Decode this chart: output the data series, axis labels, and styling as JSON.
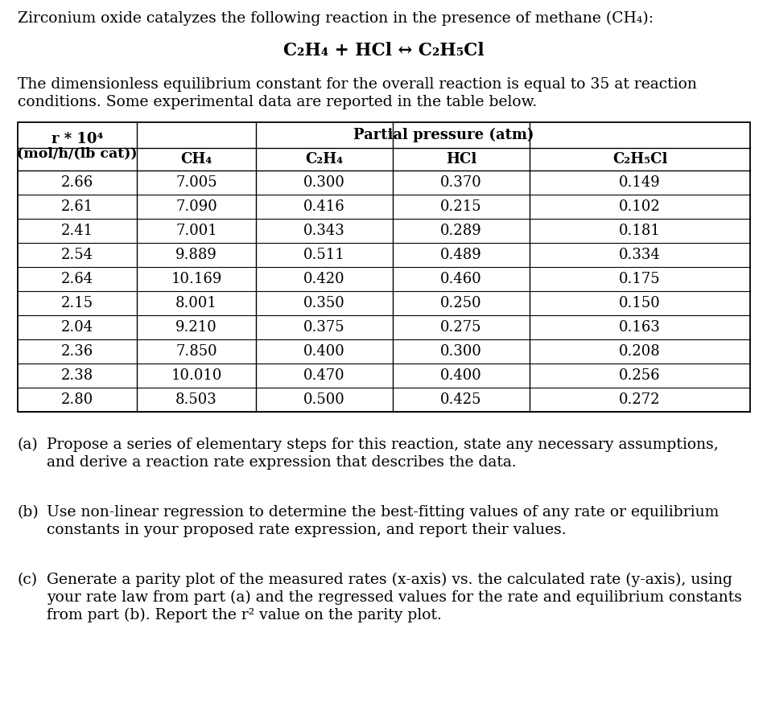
{
  "title": "Zirconium oxide catalyzes the following reaction in the presence of methane (CH₄):",
  "reaction": "C₂H₄ + HCl ↔ C₂H₅Cl",
  "desc_line1": "The dimensionless equilibrium constant for the overall reaction is equal to 35 at reaction",
  "desc_line2": "conditions. Some experimental data are reported in the table below.",
  "col_headers_top_label": "Partial pressure (atm)",
  "col_header_col0_line1": "r * 10⁴",
  "col_header_col0_line2": "(mol/h/(lb cat))",
  "col_headers_row2": [
    "CH₄",
    "C₂H₄",
    "HCl",
    "C₂H₅Cl"
  ],
  "table_data": [
    [
      "2.66",
      "7.005",
      "0.300",
      "0.370",
      "0.149"
    ],
    [
      "2.61",
      "7.090",
      "0.416",
      "0.215",
      "0.102"
    ],
    [
      "2.41",
      "7.001",
      "0.343",
      "0.289",
      "0.181"
    ],
    [
      "2.54",
      "9.889",
      "0.511",
      "0.489",
      "0.334"
    ],
    [
      "2.64",
      "10.169",
      "0.420",
      "0.460",
      "0.175"
    ],
    [
      "2.15",
      "8.001",
      "0.350",
      "0.250",
      "0.150"
    ],
    [
      "2.04",
      "9.210",
      "0.375",
      "0.275",
      "0.163"
    ],
    [
      "2.36",
      "7.850",
      "0.400",
      "0.300",
      "0.208"
    ],
    [
      "2.38",
      "10.010",
      "0.470",
      "0.400",
      "0.256"
    ],
    [
      "2.80",
      "8.503",
      "0.500",
      "0.425",
      "0.272"
    ]
  ],
  "qa_label_a": "(a)",
  "qa_text_a_line1": "Propose a series of elementary steps for this reaction, state any necessary assumptions,",
  "qa_text_a_line2": "and derive a reaction rate expression that describes the data.",
  "qb_label": "(b)",
  "qb_text_line1": "Use non-linear regression to determine the best-fitting values of any rate or equilibrium",
  "qb_text_line2": "constants in your proposed rate expression, and report their values.",
  "qc_label": "(c)",
  "qc_text_line1": "Generate a parity plot of the measured rates (x-axis) vs. the calculated rate (y-axis), using",
  "qc_text_line2": "your rate law from part (a) and the regressed values for the rate and equilibrium constants",
  "qc_text_line3": "from part (b). Report the r² value on the parity plot.",
  "bg_color": "#ffffff",
  "text_color": "#000000",
  "table_line_color": "#555555",
  "fs_body": 13.5,
  "fs_reaction": 15.5,
  "fs_table": 13.0
}
